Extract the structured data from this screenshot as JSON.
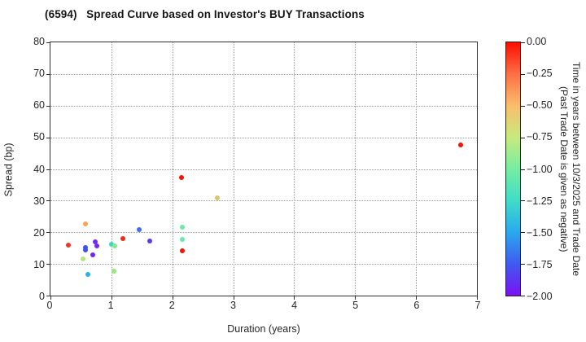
{
  "title": "(6594)   Spread Curve based on Investor's BUY Transactions",
  "chart_data": {
    "type": "scatter",
    "title": "(6594)   Spread Curve based on Investor's BUY Transactions",
    "xlabel": "Duration (years)",
    "ylabel": "Spread (bp)",
    "xlim": [
      0,
      7
    ],
    "ylim": [
      0,
      80
    ],
    "xticks": [
      0,
      1,
      2,
      3,
      4,
      5,
      6,
      7
    ],
    "yticks": [
      0,
      10,
      20,
      30,
      40,
      50,
      60,
      70,
      80
    ],
    "grid": true,
    "legend": "none",
    "points": [
      {
        "duration": 0.3,
        "spread": 16.0,
        "time_years": -0.03,
        "color": "#f0352a"
      },
      {
        "duration": 0.53,
        "spread": 11.6,
        "time_years": -0.8,
        "color": "#b2e87a"
      },
      {
        "duration": 0.57,
        "spread": 15.2,
        "time_years": -1.65,
        "color": "#3e53ec"
      },
      {
        "duration": 0.58,
        "spread": 14.4,
        "time_years": -1.65,
        "color": "#3e53ec"
      },
      {
        "duration": 0.58,
        "spread": 22.7,
        "time_years": -0.4,
        "color": "#fba25c"
      },
      {
        "duration": 0.62,
        "spread": 6.6,
        "time_years": -1.4,
        "color": "#27b3e8"
      },
      {
        "duration": 0.7,
        "spread": 12.8,
        "time_years": -1.85,
        "color": "#7129f1"
      },
      {
        "duration": 0.73,
        "spread": 16.9,
        "time_years": -1.85,
        "color": "#7129f1"
      },
      {
        "duration": 0.76,
        "spread": 15.6,
        "time_years": -1.85,
        "color": "#7129f1"
      },
      {
        "duration": 1.0,
        "spread": 16.2,
        "time_years": -1.2,
        "color": "#3bd6c7"
      },
      {
        "duration": 1.06,
        "spread": 15.7,
        "time_years": -0.95,
        "color": "#84e989"
      },
      {
        "duration": 1.04,
        "spread": 7.6,
        "time_years": -0.9,
        "color": "#95e87b"
      },
      {
        "duration": 1.19,
        "spread": 18.1,
        "time_years": -0.02,
        "color": "#ee2a1c"
      },
      {
        "duration": 1.45,
        "spread": 20.8,
        "time_years": -1.55,
        "color": "#3e6ceb"
      },
      {
        "duration": 1.63,
        "spread": 17.2,
        "time_years": -1.75,
        "color": "#5a38ea"
      },
      {
        "duration": 2.15,
        "spread": 37.3,
        "time_years": 0.0,
        "color": "#f21505"
      },
      {
        "duration": 2.17,
        "spread": 21.6,
        "time_years": -1.0,
        "color": "#6ae8a8"
      },
      {
        "duration": 2.17,
        "spread": 17.8,
        "time_years": -1.0,
        "color": "#6ae8a8"
      },
      {
        "duration": 2.16,
        "spread": 14.1,
        "time_years": 0.0,
        "color": "#f21505"
      },
      {
        "duration": 2.74,
        "spread": 30.8,
        "time_years": -0.6,
        "color": "#d8c76a"
      },
      {
        "duration": 6.73,
        "spread": 47.5,
        "time_years": 0.0,
        "color": "#f21505"
      }
    ],
    "colorbar": {
      "min": -2.0,
      "max": 0.0,
      "ticks": [
        "0.00",
        "−0.25",
        "−0.50",
        "−0.75",
        "−1.00",
        "−1.25",
        "−1.50",
        "−1.75",
        "−2.00"
      ],
      "label_line1": "Time in years between 10/3/2025 and Trade Date",
      "label_line2": "(Past Trade Date is given as negative)",
      "gradient_top_to_bottom": [
        "#fd0d00",
        "#fc7044",
        "#fbbd6c",
        "#c8ea7d",
        "#76eda3",
        "#40dcc8",
        "#2aa9ed",
        "#3f5af0",
        "#7b10f3"
      ]
    }
  }
}
